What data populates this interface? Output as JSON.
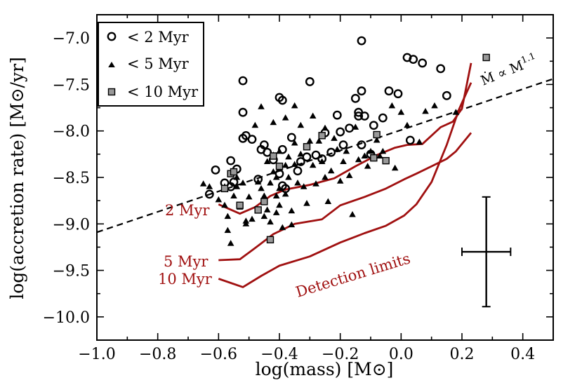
{
  "chart_data": {
    "type": "scatter",
    "xlabel": "log(mass) [M⊙]",
    "ylabel": "log(accretion rate) [M⊙/yr]",
    "xlim": [
      -1.0,
      0.5
    ],
    "ylim": [
      -10.25,
      -6.75
    ],
    "xticks": [
      -1.0,
      -0.8,
      -0.6,
      -0.4,
      -0.2,
      0.0,
      0.2,
      0.4
    ],
    "xtick_labels": [
      "−1.0",
      "−0.8",
      "−0.6",
      "−0.4",
      "−0.2",
      "0.0",
      "0.2",
      "0.4"
    ],
    "yticks": [
      -10.0,
      -9.5,
      -9.0,
      -8.5,
      -8.0,
      -7.5,
      -7.0
    ],
    "ytick_labels": [
      "−10.0",
      "−9.5",
      "−9.0",
      "−8.5",
      "−8.0",
      "−7.5",
      "−7.0"
    ],
    "legend": {
      "location": "top-left",
      "entries": [
        {
          "label": "< 2 Myr",
          "marker": "open-circle"
        },
        {
          "label": "< 5 Myr",
          "marker": "filled-triangle"
        },
        {
          "label": "< 10 Myr",
          "marker": "gray-square"
        }
      ]
    },
    "series": [
      {
        "name": "< 2 Myr",
        "marker": "open-circle",
        "points": [
          [
            -0.63,
            -8.68
          ],
          [
            -0.61,
            -8.42
          ],
          [
            -0.58,
            -8.56
          ],
          [
            -0.56,
            -8.6
          ],
          [
            -0.55,
            -8.55
          ],
          [
            -0.56,
            -8.32
          ],
          [
            -0.54,
            -8.41
          ],
          [
            -0.52,
            -7.46
          ],
          [
            -0.52,
            -7.8
          ],
          [
            -0.51,
            -8.05
          ],
          [
            -0.52,
            -8.08
          ],
          [
            -0.49,
            -8.09
          ],
          [
            -0.47,
            -8.52
          ],
          [
            -0.46,
            -8.2
          ],
          [
            -0.45,
            -8.15
          ],
          [
            -0.44,
            -8.23
          ],
          [
            -0.42,
            -8.31
          ],
          [
            -0.4,
            -7.64
          ],
          [
            -0.39,
            -7.67
          ],
          [
            -0.39,
            -8.2
          ],
          [
            -0.4,
            -8.46
          ],
          [
            -0.39,
            -8.59
          ],
          [
            -0.38,
            -8.62
          ],
          [
            -0.36,
            -8.07
          ],
          [
            -0.34,
            -8.43
          ],
          [
            -0.33,
            -8.33
          ],
          [
            -0.31,
            -8.28
          ],
          [
            -0.3,
            -7.47
          ],
          [
            -0.28,
            -8.26
          ],
          [
            -0.26,
            -8.3
          ],
          [
            -0.25,
            -8.02
          ],
          [
            -0.23,
            -8.23
          ],
          [
            -0.21,
            -7.83
          ],
          [
            -0.2,
            -8.01
          ],
          [
            -0.19,
            -8.15
          ],
          [
            -0.17,
            -7.97
          ],
          [
            -0.15,
            -7.65
          ],
          [
            -0.14,
            -7.8
          ],
          [
            -0.14,
            -7.84
          ],
          [
            -0.13,
            -7.03
          ],
          [
            -0.13,
            -7.57
          ],
          [
            -0.12,
            -7.84
          ],
          [
            -0.13,
            -8.15
          ],
          [
            -0.1,
            -8.25
          ],
          [
            -0.09,
            -7.94
          ],
          [
            -0.06,
            -7.86
          ],
          [
            -0.04,
            -7.57
          ],
          [
            -0.01,
            -7.6
          ],
          [
            0.02,
            -7.21
          ],
          [
            0.03,
            -8.1
          ],
          [
            0.04,
            -7.23
          ],
          [
            0.07,
            -7.27
          ],
          [
            0.13,
            -7.33
          ],
          [
            0.15,
            -7.62
          ]
        ]
      },
      {
        "name": "< 5 Myr",
        "marker": "filled-triangle",
        "points": [
          [
            -0.65,
            -8.57
          ],
          [
            -0.63,
            -8.6
          ],
          [
            -0.6,
            -8.74
          ],
          [
            -0.58,
            -8.6
          ],
          [
            -0.58,
            -8.8
          ],
          [
            -0.57,
            -8.92
          ],
          [
            -0.57,
            -9.07
          ],
          [
            -0.56,
            -9.21
          ],
          [
            -0.55,
            -8.7
          ],
          [
            -0.54,
            -8.5
          ],
          [
            -0.54,
            -8.6
          ],
          [
            -0.53,
            -8.82
          ],
          [
            -0.52,
            -8.56
          ],
          [
            -0.51,
            -8.97
          ],
          [
            -0.51,
            -9.0
          ],
          [
            -0.5,
            -8.71
          ],
          [
            -0.49,
            -8.95
          ],
          [
            -0.48,
            -7.94
          ],
          [
            -0.47,
            -8.55
          ],
          [
            -0.46,
            -7.74
          ],
          [
            -0.46,
            -8.62
          ],
          [
            -0.45,
            -8.7
          ],
          [
            -0.45,
            -8.92
          ],
          [
            -0.44,
            -8.33
          ],
          [
            -0.44,
            -8.85
          ],
          [
            -0.43,
            -8.56
          ],
          [
            -0.43,
            -8.98
          ],
          [
            -0.42,
            -7.91
          ],
          [
            -0.42,
            -8.26
          ],
          [
            -0.42,
            -8.44
          ],
          [
            -0.41,
            -8.5
          ],
          [
            -0.41,
            -8.7
          ],
          [
            -0.41,
            -8.88
          ],
          [
            -0.4,
            -8.22
          ],
          [
            -0.4,
            -8.41
          ],
          [
            -0.4,
            -8.62
          ],
          [
            -0.4,
            -8.8
          ],
          [
            -0.39,
            -9.04
          ],
          [
            -0.38,
            -7.86
          ],
          [
            -0.38,
            -8.37
          ],
          [
            -0.38,
            -8.68
          ],
          [
            -0.37,
            -8.28
          ],
          [
            -0.37,
            -8.5
          ],
          [
            -0.36,
            -8.86
          ],
          [
            -0.36,
            -9.01
          ],
          [
            -0.35,
            -7.73
          ],
          [
            -0.35,
            -8.13
          ],
          [
            -0.35,
            -8.36
          ],
          [
            -0.34,
            -8.56
          ],
          [
            -0.33,
            -7.94
          ],
          [
            -0.33,
            -8.25
          ],
          [
            -0.32,
            -8.6
          ],
          [
            -0.31,
            -8.78
          ],
          [
            -0.3,
            -8.11
          ],
          [
            -0.29,
            -7.84
          ],
          [
            -0.29,
            -8.37
          ],
          [
            -0.28,
            -8.57
          ],
          [
            -0.27,
            -8.11
          ],
          [
            -0.26,
            -8.33
          ],
          [
            -0.25,
            -7.97
          ],
          [
            -0.25,
            -8.5
          ],
          [
            -0.24,
            -8.76
          ],
          [
            -0.23,
            -8.43
          ],
          [
            -0.22,
            -8.08
          ],
          [
            -0.21,
            -8.2
          ],
          [
            -0.2,
            -8.54
          ],
          [
            -0.19,
            -8.33
          ],
          [
            -0.18,
            -8.22
          ],
          [
            -0.17,
            -8.48
          ],
          [
            -0.16,
            -8.9
          ],
          [
            -0.15,
            -7.96
          ],
          [
            -0.14,
            -8.31
          ],
          [
            -0.12,
            -8.27
          ],
          [
            -0.11,
            -8.38
          ],
          [
            -0.1,
            -8.22
          ],
          [
            -0.08,
            -8.1
          ],
          [
            -0.07,
            -8.27
          ],
          [
            -0.06,
            -8.22
          ],
          [
            -0.03,
            -7.73
          ],
          [
            -0.02,
            -8.4
          ],
          [
            0.0,
            -7.8
          ],
          [
            0.02,
            -7.94
          ],
          [
            0.06,
            -8.12
          ],
          [
            0.08,
            -7.79
          ],
          [
            0.11,
            -7.73
          ],
          [
            0.18,
            -7.8
          ]
        ]
      },
      {
        "name": "< 10 Myr",
        "marker": "gray-square",
        "points": [
          [
            -0.58,
            -8.62
          ],
          [
            -0.56,
            -8.46
          ],
          [
            -0.55,
            -8.44
          ],
          [
            -0.53,
            -8.8
          ],
          [
            -0.47,
            -8.85
          ],
          [
            -0.45,
            -8.76
          ],
          [
            -0.43,
            -9.17
          ],
          [
            -0.42,
            -8.27
          ],
          [
            -0.4,
            -8.38
          ],
          [
            -0.31,
            -8.17
          ],
          [
            -0.26,
            -8.05
          ],
          [
            -0.09,
            -8.29
          ],
          [
            -0.08,
            -8.04
          ],
          [
            -0.05,
            -8.32
          ],
          [
            0.28,
            -7.21
          ]
        ]
      }
    ],
    "detection_limits": [
      {
        "label": "2 Myr",
        "points": [
          [
            -0.6,
            -8.79
          ],
          [
            -0.53,
            -8.89
          ],
          [
            -0.48,
            -8.82
          ],
          [
            -0.43,
            -8.7
          ],
          [
            -0.38,
            -8.63
          ],
          [
            -0.3,
            -8.58
          ],
          [
            -0.22,
            -8.51
          ],
          [
            -0.15,
            -8.38
          ],
          [
            -0.08,
            -8.26
          ],
          [
            -0.02,
            -8.18
          ],
          [
            0.02,
            -8.15
          ],
          [
            0.07,
            -8.14
          ],
          [
            0.13,
            -7.96
          ],
          [
            0.17,
            -7.9
          ],
          [
            0.2,
            -7.76
          ],
          [
            0.23,
            -7.27
          ]
        ]
      },
      {
        "label": "5 Myr",
        "points": [
          [
            -0.6,
            -9.39
          ],
          [
            -0.53,
            -9.38
          ],
          [
            -0.48,
            -9.26
          ],
          [
            -0.42,
            -9.11
          ],
          [
            -0.35,
            -9.0
          ],
          [
            -0.26,
            -8.95
          ],
          [
            -0.2,
            -8.8
          ],
          [
            -0.12,
            -8.71
          ],
          [
            -0.05,
            -8.62
          ],
          [
            0.01,
            -8.52
          ],
          [
            0.05,
            -8.46
          ],
          [
            0.1,
            -8.38
          ],
          [
            0.15,
            -8.3
          ],
          [
            0.18,
            -8.22
          ],
          [
            0.23,
            -8.02
          ]
        ]
      },
      {
        "label": "10 Myr",
        "points": [
          [
            -0.6,
            -9.59
          ],
          [
            -0.52,
            -9.68
          ],
          [
            -0.46,
            -9.56
          ],
          [
            -0.4,
            -9.45
          ],
          [
            -0.3,
            -9.35
          ],
          [
            -0.2,
            -9.2
          ],
          [
            -0.12,
            -9.1
          ],
          [
            -0.05,
            -9.02
          ],
          [
            0.01,
            -8.91
          ],
          [
            0.05,
            -8.79
          ],
          [
            0.1,
            -8.55
          ],
          [
            0.15,
            -8.15
          ],
          [
            0.19,
            -7.77
          ],
          [
            0.23,
            -7.48
          ]
        ]
      }
    ],
    "fit_line": {
      "label": "Ṁ ∝ M",
      "exponent": "1.1",
      "points": [
        [
          -1.0,
          -9.09
        ],
        [
          0.5,
          -7.44
        ]
      ]
    },
    "annotations": {
      "curve_labels": [
        "2 Myr",
        "5 Myr",
        "10 Myr"
      ],
      "detection": "Detection limits"
    },
    "error_bar": {
      "x": 0.28,
      "y": -9.3,
      "x_err": 0.08,
      "y_err_plus": 0.59,
      "y_err_minus": 0.59
    },
    "colors": {
      "detection_curves": "#a01010",
      "gray_square": "#999999"
    }
  }
}
